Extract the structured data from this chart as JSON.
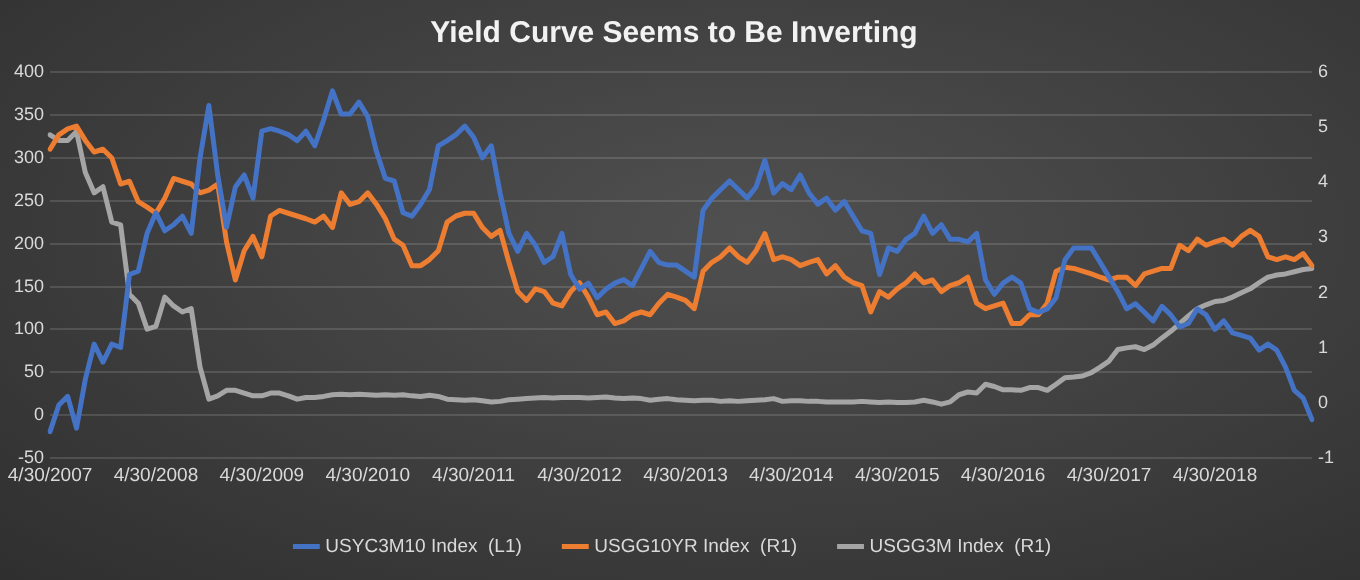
{
  "chart_data": {
    "type": "line",
    "title": "Yield Curve Seems to Be Inverting",
    "categories": [
      "4/30/2007",
      null,
      null,
      null,
      null,
      null,
      null,
      null,
      null,
      null,
      null,
      null,
      "4/30/2008",
      null,
      null,
      null,
      null,
      null,
      null,
      null,
      null,
      null,
      null,
      null,
      "4/30/2009",
      null,
      null,
      null,
      null,
      null,
      null,
      null,
      null,
      null,
      null,
      null,
      "4/30/2010",
      null,
      null,
      null,
      null,
      null,
      null,
      null,
      null,
      null,
      null,
      null,
      "4/30/2011",
      null,
      null,
      null,
      null,
      null,
      null,
      null,
      null,
      null,
      null,
      null,
      "4/30/2012",
      null,
      null,
      null,
      null,
      null,
      null,
      null,
      null,
      null,
      null,
      null,
      "4/30/2013",
      null,
      null,
      null,
      null,
      null,
      null,
      null,
      null,
      null,
      null,
      null,
      "4/30/2014",
      null,
      null,
      null,
      null,
      null,
      null,
      null,
      null,
      null,
      null,
      null,
      "4/30/2015",
      null,
      null,
      null,
      null,
      null,
      null,
      null,
      null,
      null,
      null,
      null,
      "4/30/2016",
      null,
      null,
      null,
      null,
      null,
      null,
      null,
      null,
      null,
      null,
      null,
      "4/30/2017",
      null,
      null,
      null,
      null,
      null,
      null,
      null,
      null,
      null,
      null,
      null,
      "4/30/2018",
      null,
      null,
      null,
      null,
      null,
      null,
      null,
      null,
      null,
      null,
      null
    ],
    "series": [
      {
        "name": "USYC3M10 Index  (L1)",
        "color": "#4472c4",
        "values": [
          -19,
          12,
          22,
          -15,
          42,
          83,
          62,
          83,
          79,
          164,
          168,
          212,
          236,
          215,
          222,
          232,
          212,
          300,
          361,
          280,
          219,
          266,
          280,
          253,
          331,
          334,
          331,
          327,
          320,
          331,
          314,
          344,
          378,
          351,
          351,
          365,
          348,
          307,
          276,
          273,
          236,
          232,
          246,
          263,
          314,
          320,
          327,
          337,
          324,
          300,
          314,
          259,
          212,
          191,
          212,
          198,
          178,
          185,
          212,
          164,
          147,
          154,
          137,
          147,
          154,
          158,
          151,
          171,
          191,
          178,
          175,
          175,
          168,
          161,
          239,
          253,
          263,
          273,
          263,
          253,
          266,
          297,
          259,
          270,
          263,
          280,
          259,
          246,
          253,
          239,
          249,
          232,
          215,
          212,
          164,
          195,
          191,
          205,
          212,
          232,
          212,
          222,
          205,
          205,
          202,
          212,
          158,
          141,
          154,
          161,
          154,
          124,
          120,
          124,
          137,
          181,
          195,
          195,
          195,
          178,
          161,
          144,
          124,
          130,
          120,
          110,
          127,
          117,
          103,
          107,
          124,
          117,
          100,
          110,
          96,
          93,
          90,
          76,
          83,
          76,
          56,
          29,
          20,
          -5
        ]
      },
      {
        "name": "USGG10YR Index  (R1)",
        "color": "#ed7d31",
        "axis": "y2",
        "values": [
          4.6,
          4.86,
          4.97,
          5.02,
          4.76,
          4.55,
          4.6,
          4.44,
          3.97,
          4.02,
          3.65,
          3.55,
          3.44,
          3.71,
          4.07,
          4.02,
          3.97,
          3.81,
          3.86,
          3.97,
          2.92,
          2.23,
          2.76,
          3.02,
          2.65,
          3.39,
          3.49,
          3.44,
          3.39,
          3.34,
          3.28,
          3.39,
          3.18,
          3.81,
          3.6,
          3.65,
          3.81,
          3.6,
          3.34,
          2.97,
          2.86,
          2.49,
          2.49,
          2.6,
          2.76,
          3.28,
          3.39,
          3.44,
          3.44,
          3.18,
          3.02,
          3.13,
          2.55,
          2.02,
          1.86,
          2.07,
          2.02,
          1.81,
          1.76,
          2.02,
          2.18,
          1.92,
          1.6,
          1.65,
          1.44,
          1.49,
          1.6,
          1.65,
          1.6,
          1.81,
          1.97,
          1.92,
          1.86,
          1.71,
          2.39,
          2.55,
          2.65,
          2.81,
          2.65,
          2.55,
          2.76,
          3.07,
          2.6,
          2.65,
          2.6,
          2.49,
          2.55,
          2.6,
          2.34,
          2.49,
          2.28,
          2.18,
          2.13,
          1.65,
          2.02,
          1.92,
          2.07,
          2.18,
          2.34,
          2.18,
          2.23,
          2.02,
          2.13,
          2.18,
          2.28,
          1.81,
          1.71,
          1.76,
          1.81,
          1.44,
          1.44,
          1.6,
          1.6,
          1.81,
          2.39,
          2.46,
          2.44,
          2.39,
          2.34,
          2.28,
          2.23,
          2.28,
          2.28,
          2.13,
          2.34,
          2.39,
          2.44,
          2.44,
          2.86,
          2.76,
          2.97,
          2.86,
          2.92,
          2.97,
          2.86,
          3.02,
          3.13,
          3.02,
          2.65,
          2.6,
          2.65,
          2.6,
          2.71,
          2.49
        ]
      },
      {
        "name": "USGG3M Index  (R1)",
        "color": "#a5a5a5",
        "axis": "y2",
        "values": [
          4.86,
          4.76,
          4.76,
          4.92,
          4.18,
          3.81,
          3.92,
          3.28,
          3.23,
          1.97,
          1.81,
          1.34,
          1.39,
          1.92,
          1.76,
          1.65,
          1.71,
          0.65,
          0.07,
          0.13,
          0.23,
          0.23,
          0.18,
          0.13,
          0.13,
          0.18,
          0.18,
          0.13,
          0.07,
          0.1,
          0.1,
          0.12,
          0.15,
          0.16,
          0.15,
          0.16,
          0.15,
          0.14,
          0.15,
          0.14,
          0.15,
          0.13,
          0.12,
          0.14,
          0.12,
          0.07,
          0.06,
          0.05,
          0.06,
          0.04,
          0.02,
          0.03,
          0.06,
          0.07,
          0.08,
          0.09,
          0.1,
          0.09,
          0.1,
          0.1,
          0.1,
          0.09,
          0.1,
          0.11,
          0.09,
          0.08,
          0.09,
          0.08,
          0.05,
          0.07,
          0.08,
          0.06,
          0.05,
          0.04,
          0.05,
          0.05,
          0.03,
          0.04,
          0.03,
          0.04,
          0.05,
          0.06,
          0.08,
          0.03,
          0.04,
          0.04,
          0.03,
          0.03,
          0.02,
          0.02,
          0.02,
          0.02,
          0.03,
          0.02,
          0.01,
          0.02,
          0.01,
          0.01,
          0.02,
          0.05,
          0.02,
          -0.02,
          0.02,
          0.15,
          0.2,
          0.18,
          0.34,
          0.3,
          0.24,
          0.24,
          0.23,
          0.28,
          0.28,
          0.23,
          0.34,
          0.46,
          0.47,
          0.49,
          0.55,
          0.65,
          0.76,
          0.97,
          1.0,
          1.02,
          0.97,
          1.05,
          1.18,
          1.3,
          1.44,
          1.58,
          1.71,
          1.78,
          1.84,
          1.86,
          1.92,
          2.0,
          2.07,
          2.18,
          2.28,
          2.32,
          2.34,
          2.38,
          2.42,
          2.44
        ]
      }
    ],
    "ylim": [
      -50,
      400
    ],
    "yticks": [
      -50,
      0,
      50,
      100,
      150,
      200,
      250,
      300,
      350,
      400
    ],
    "y2lim": [
      -1,
      6
    ],
    "y2ticks": [
      -1,
      0,
      1,
      2,
      3,
      4,
      5,
      6
    ],
    "grid": "y",
    "legend": "bottom",
    "marker": "none",
    "line_style": "solid"
  }
}
